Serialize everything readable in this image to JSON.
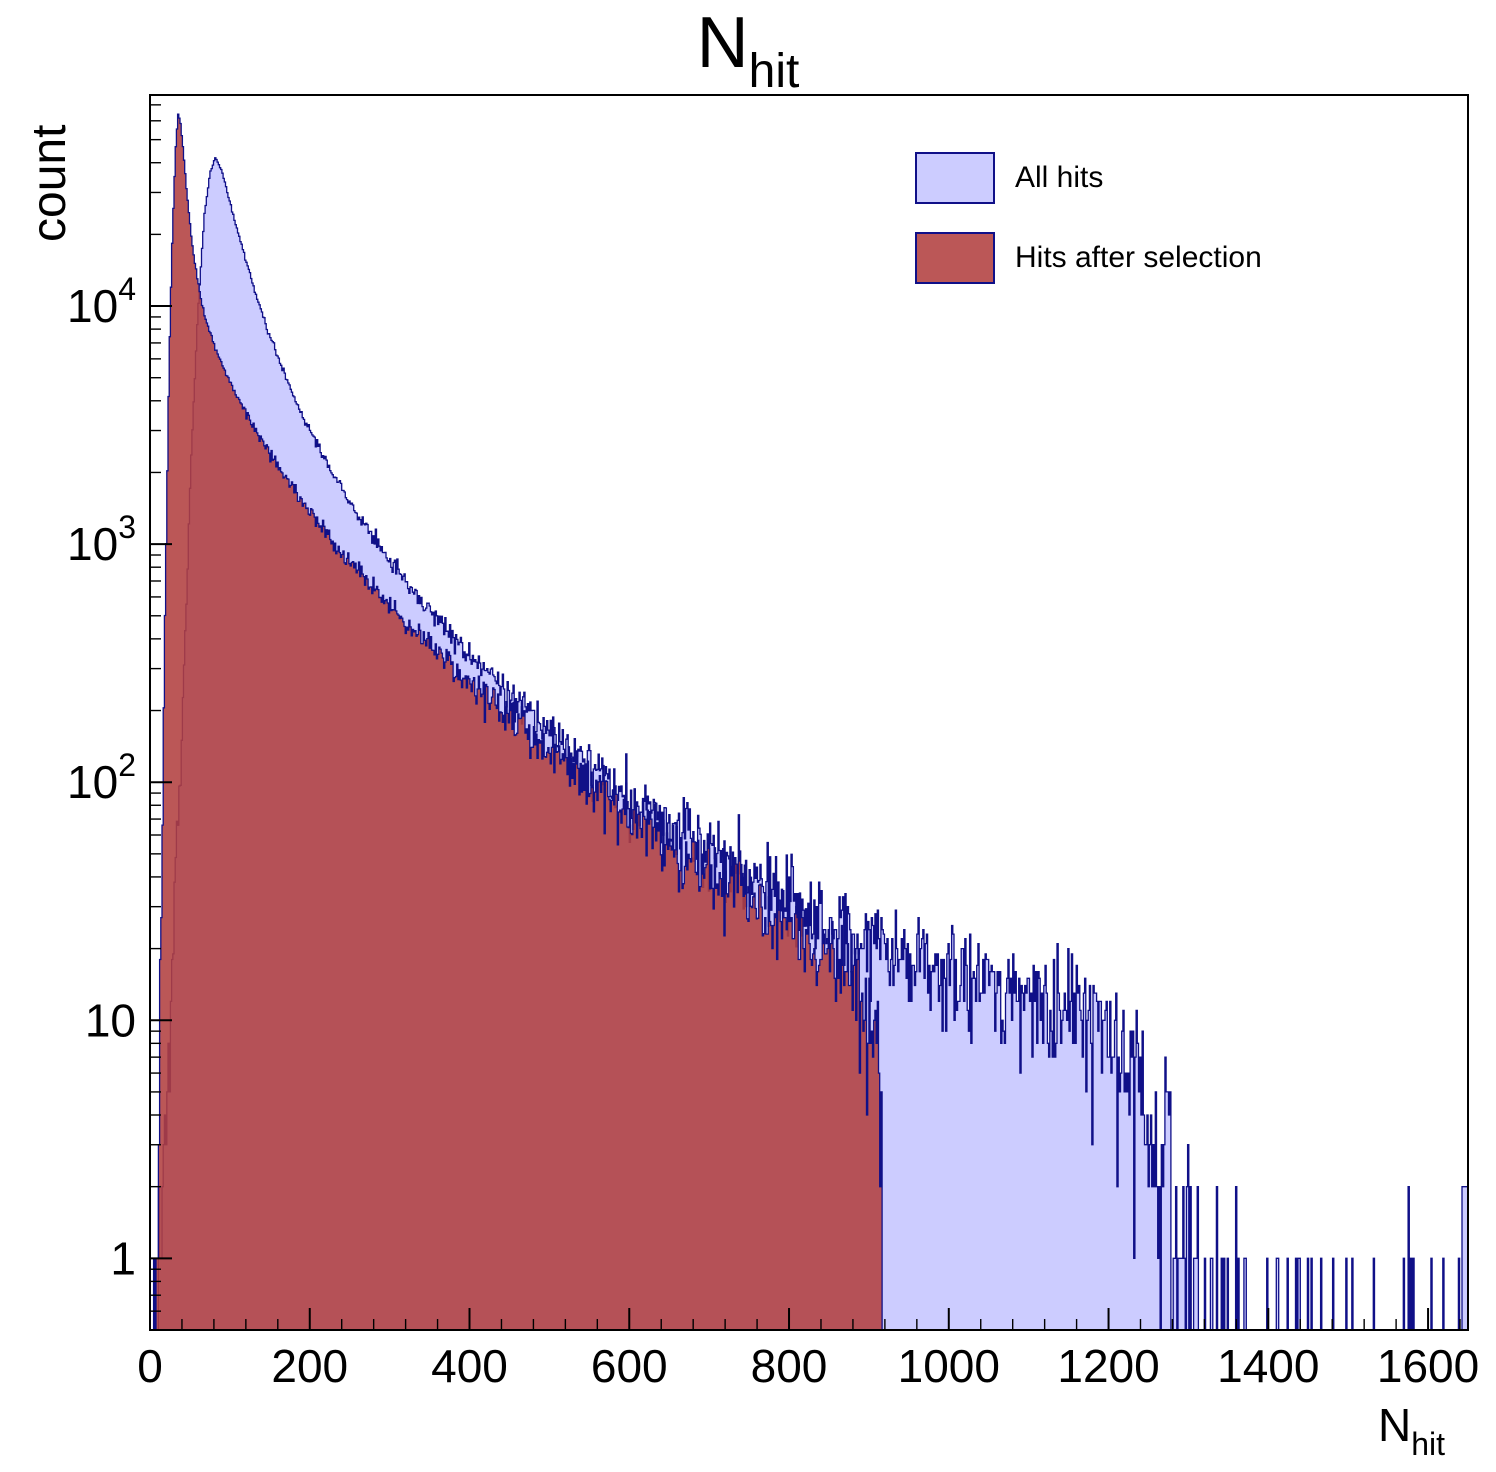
{
  "chart_data": {
    "type": "histogram",
    "title": "N_hit",
    "title_main": "N",
    "title_sub": "hit",
    "ylabel": "count",
    "xlabel_main": "N",
    "xlabel_sub": "hit",
    "x_axis": {
      "min": 0,
      "max": 1650,
      "major_ticks": [
        0,
        200,
        400,
        600,
        800,
        1000,
        1200,
        1400,
        1600
      ],
      "minor_tick_step": 40
    },
    "y_axis": {
      "scale": "log",
      "min": 0.5,
      "max": 77000,
      "tick_values": [
        1,
        10,
        100,
        1000,
        10000
      ],
      "tick_labels": [
        {
          "base": "1",
          "exp": ""
        },
        {
          "base": "10",
          "exp": ""
        },
        {
          "base": "10",
          "exp": "2"
        },
        {
          "base": "10",
          "exp": "3"
        },
        {
          "base": "10",
          "exp": "4"
        }
      ]
    },
    "legend": {
      "entries": [
        {
          "label": "All hits",
          "fill": "#ccccff",
          "alpha": 1,
          "line": "#101088"
        },
        {
          "label": "Hits after selection",
          "fill": "#b24040",
          "alpha": 0.88,
          "line": "#101088"
        }
      ]
    },
    "bins": 1100,
    "seed": 7,
    "series": [
      {
        "name": "All hits",
        "fill": "#ccccff",
        "alpha": 1,
        "line": "#101088",
        "cutoff": 1650,
        "force_tail": {
          "from": 1643,
          "count": 2
        },
        "anchors": [
          [
            8,
            0.6
          ],
          [
            14,
            1.5
          ],
          [
            20,
            4
          ],
          [
            28,
            15
          ],
          [
            36,
            70
          ],
          [
            44,
            400
          ],
          [
            52,
            2500
          ],
          [
            60,
            9500
          ],
          [
            68,
            24000
          ],
          [
            75,
            36000
          ],
          [
            82,
            42000
          ],
          [
            90,
            37000
          ],
          [
            98,
            29000
          ],
          [
            108,
            21500
          ],
          [
            120,
            15500
          ],
          [
            135,
            10500
          ],
          [
            150,
            7500
          ],
          [
            165,
            5500
          ],
          [
            180,
            4200
          ],
          [
            200,
            3000
          ],
          [
            220,
            2250
          ],
          [
            240,
            1700
          ],
          [
            260,
            1320
          ],
          [
            280,
            1050
          ],
          [
            300,
            850
          ],
          [
            330,
            640
          ],
          [
            360,
            490
          ],
          [
            400,
            340
          ],
          [
            440,
            250
          ],
          [
            480,
            190
          ],
          [
            520,
            148
          ],
          [
            560,
            114
          ],
          [
            600,
            88
          ],
          [
            650,
            66
          ],
          [
            700,
            52
          ],
          [
            750,
            41
          ],
          [
            800,
            33
          ],
          [
            850,
            27
          ],
          [
            900,
            22.5
          ],
          [
            950,
            19.5
          ],
          [
            1000,
            17
          ],
          [
            1050,
            15
          ],
          [
            1100,
            13
          ],
          [
            1150,
            11.5
          ],
          [
            1190,
            10
          ],
          [
            1215,
            8.5
          ],
          [
            1240,
            6
          ],
          [
            1260,
            3.2
          ],
          [
            1280,
            1.5
          ],
          [
            1300,
            0.8
          ],
          [
            1330,
            0.4
          ],
          [
            1370,
            0.22
          ],
          [
            1420,
            0.15
          ],
          [
            1470,
            0.12
          ],
          [
            1530,
            0.1
          ],
          [
            1590,
            0.09
          ],
          [
            1645,
            0.1
          ]
        ]
      },
      {
        "name": "Hits after selection",
        "fill": "#b24040",
        "alpha": 0.88,
        "line": "#101088",
        "cutoff": 916,
        "anchors": [
          [
            4,
            0.6
          ],
          [
            9,
            2.5
          ],
          [
            14,
            25
          ],
          [
            19,
            600
          ],
          [
            24,
            6000
          ],
          [
            28,
            20000
          ],
          [
            32,
            45000
          ],
          [
            35,
            65000
          ],
          [
            38,
            60000
          ],
          [
            42,
            44000
          ],
          [
            47,
            28000
          ],
          [
            53,
            18000
          ],
          [
            60,
            12500
          ],
          [
            68,
            9300
          ],
          [
            78,
            7200
          ],
          [
            88,
            5900
          ],
          [
            100,
            4800
          ],
          [
            115,
            3800
          ],
          [
            130,
            3100
          ],
          [
            150,
            2400
          ],
          [
            170,
            1900
          ],
          [
            190,
            1520
          ],
          [
            210,
            1230
          ],
          [
            240,
            930
          ],
          [
            270,
            710
          ],
          [
            300,
            555
          ],
          [
            330,
            440
          ],
          [
            370,
            330
          ],
          [
            410,
            248
          ],
          [
            450,
            188
          ],
          [
            490,
            145
          ],
          [
            530,
            113
          ],
          [
            570,
            89
          ],
          [
            610,
            70
          ],
          [
            660,
            53
          ],
          [
            710,
            41
          ],
          [
            760,
            31.5
          ],
          [
            810,
            24
          ],
          [
            850,
            19
          ],
          [
            880,
            15.5
          ],
          [
            900,
            12.5
          ],
          [
            910,
            9
          ],
          [
            915,
            4
          ]
        ]
      }
    ]
  }
}
